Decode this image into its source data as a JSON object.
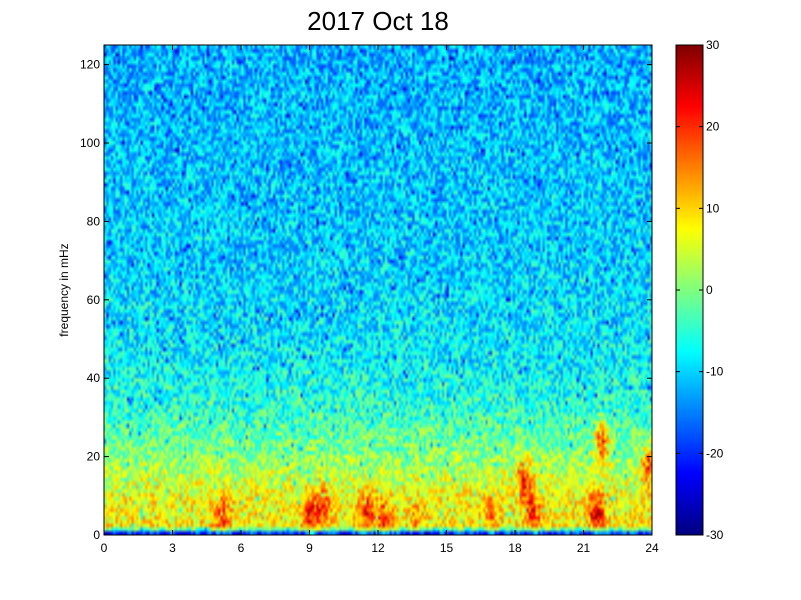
{
  "chart_data": {
    "type": "heatmap",
    "title": "2017 Oct 18",
    "xlabel": "",
    "ylabel": "frequency in mHz",
    "xlim": [
      0,
      24
    ],
    "ylim": [
      0,
      125
    ],
    "x_ticks": [
      0,
      3,
      6,
      9,
      12,
      15,
      18,
      21,
      24
    ],
    "y_ticks": [
      0,
      20,
      40,
      60,
      80,
      100,
      120
    ],
    "colorbar": {
      "range": [
        -30,
        30
      ],
      "ticks": [
        -30,
        -20,
        -10,
        0,
        10,
        20,
        30
      ],
      "colormap": "jet"
    },
    "grid": false,
    "value_profile_by_frequency": [
      {
        "frequency": 0,
        "value": -28
      },
      {
        "frequency": 2,
        "value": 8
      },
      {
        "frequency": 10,
        "value": 7
      },
      {
        "frequency": 20,
        "value": 1
      },
      {
        "frequency": 30,
        "value": -4
      },
      {
        "frequency": 45,
        "value": -8
      },
      {
        "frequency": 70,
        "value": -10
      },
      {
        "frequency": 100,
        "value": -11
      },
      {
        "frequency": 125,
        "value": -12
      }
    ],
    "hotspots": [
      {
        "time": 5.2,
        "frequency": 5,
        "value": 20
      },
      {
        "time": 9.0,
        "frequency": 5,
        "value": 22
      },
      {
        "time": 9.6,
        "frequency": 8,
        "value": 20
      },
      {
        "time": 11.5,
        "frequency": 6,
        "value": 22
      },
      {
        "time": 12.3,
        "frequency": 4,
        "value": 21
      },
      {
        "time": 13.7,
        "frequency": 4,
        "value": 14
      },
      {
        "time": 17.0,
        "frequency": 5,
        "value": 15
      },
      {
        "time": 18.4,
        "frequency": 14,
        "value": 22
      },
      {
        "time": 18.8,
        "frequency": 6,
        "value": 21
      },
      {
        "time": 21.6,
        "frequency": 6,
        "value": 25
      },
      {
        "time": 21.8,
        "frequency": 24,
        "value": 19
      },
      {
        "time": 23.9,
        "frequency": 18,
        "value": 18
      }
    ]
  }
}
